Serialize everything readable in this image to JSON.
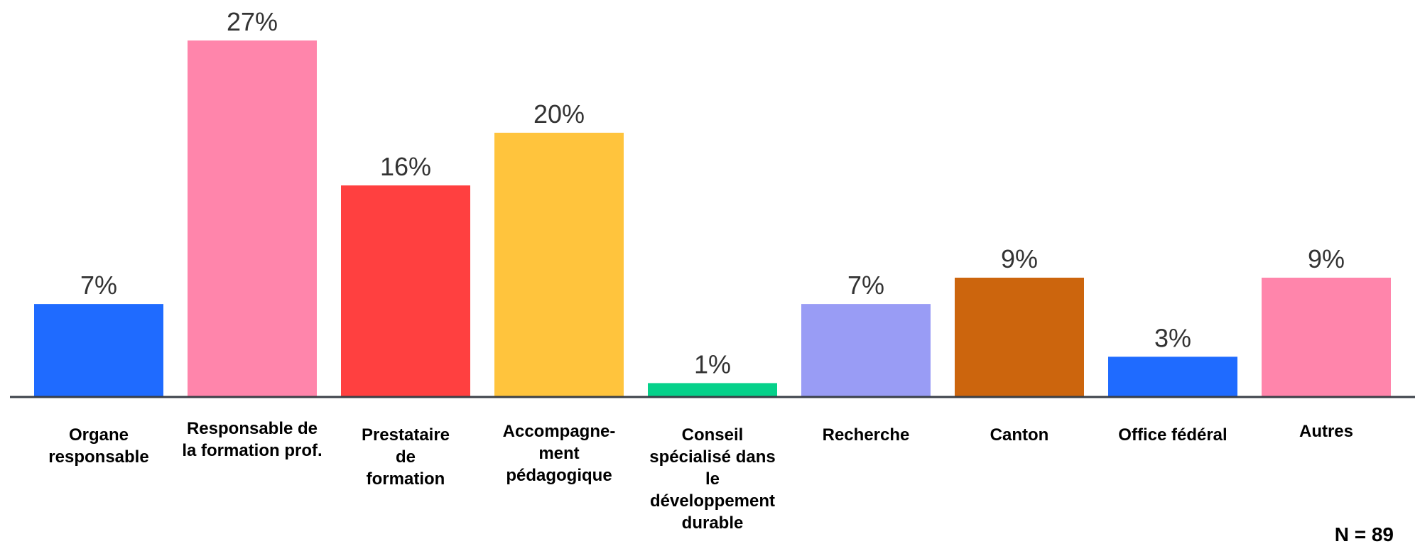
{
  "chart_data": {
    "type": "bar",
    "categories": [
      [
        "Organe",
        "responsable"
      ],
      [
        "Responsable de",
        "la formation prof."
      ],
      [
        "Prestataire",
        "de",
        "formation"
      ],
      [
        "Accompagne-",
        "ment",
        "pédagogique"
      ],
      [
        "Conseil",
        "spécialisé dans",
        "le",
        "développement",
        "durable"
      ],
      [
        "Recherche"
      ],
      [
        "Canton"
      ],
      [
        "Office fédéral"
      ],
      [
        "Autres"
      ]
    ],
    "values": [
      7,
      27,
      16,
      20,
      1,
      7,
      9,
      3,
      9
    ],
    "value_labels": [
      "7%",
      "27%",
      "16%",
      "20%",
      "1%",
      "7%",
      "9%",
      "3%",
      "9%"
    ],
    "colors": [
      "#1f6bff",
      "#ff85ab",
      "#ff4040",
      "#ffc43d",
      "#05d18a",
      "#999cf5",
      "#cc650d",
      "#1f6bff",
      "#ff85ab"
    ],
    "unit": "%",
    "ylim": [
      0,
      27
    ],
    "grid": false,
    "sample_size": "N = 89"
  }
}
